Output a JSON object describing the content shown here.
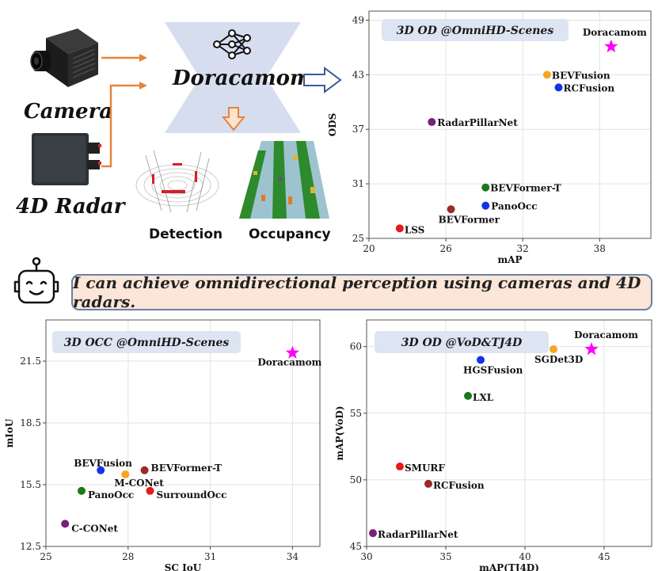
{
  "diagram": {
    "inputs": [
      {
        "label": "Camera",
        "icon": "camera-icon"
      },
      {
        "label": "4D Radar",
        "icon": "radar-icon"
      }
    ],
    "model_name": "Doracamom",
    "outputs": [
      {
        "label": "Detection"
      },
      {
        "label": "Occupancy"
      }
    ],
    "banner_text": "I can achieve omnidirectional perception using cameras and 4D radars.",
    "colors": {
      "arrow_orange": "#e8823a",
      "block_blue": "#d5ddef",
      "banner_bg": "#fbe6d7"
    }
  },
  "chart_data": [
    {
      "type": "scatter",
      "title": "3D OD @OmniHD-Scenes",
      "xlabel": "mAP",
      "ylabel": "ODS",
      "xlim": [
        20,
        42
      ],
      "ylim": [
        25,
        50
      ],
      "xticks": [
        20,
        26,
        32,
        38
      ],
      "yticks": [
        25,
        31,
        37,
        43,
        49
      ],
      "points": [
        {
          "name": "Doracamom",
          "x": 38.9,
          "y": 46.1,
          "color": "#ff00ff",
          "marker": "star"
        },
        {
          "name": "BEVFusion",
          "x": 33.9,
          "y": 43.0,
          "color": "#f5a623",
          "marker": "circle"
        },
        {
          "name": "RCFusion",
          "x": 34.8,
          "y": 41.6,
          "color": "#1533e6",
          "marker": "circle"
        },
        {
          "name": "RadarPillarNet",
          "x": 24.9,
          "y": 37.8,
          "color": "#7b1f7b",
          "marker": "circle"
        },
        {
          "name": "BEVFormer-T",
          "x": 29.1,
          "y": 30.6,
          "color": "#1a7a1a",
          "marker": "circle"
        },
        {
          "name": "PanoOcc",
          "x": 29.1,
          "y": 28.6,
          "color": "#1533e6",
          "marker": "circle"
        },
        {
          "name": "BEVFormer",
          "x": 26.4,
          "y": 28.2,
          "color": "#9b2a2a",
          "marker": "circle"
        },
        {
          "name": "LSS",
          "x": 22.4,
          "y": 26.1,
          "color": "#e61a1a",
          "marker": "circle"
        }
      ]
    },
    {
      "type": "scatter",
      "title": "3D OCC @OmniHD-Scenes",
      "xlabel": "SC IoU",
      "ylabel": "mIoU",
      "xlim": [
        25,
        35
      ],
      "ylim": [
        12.5,
        23.5
      ],
      "xticks": [
        25,
        28,
        31,
        34
      ],
      "yticks": [
        12.5,
        15.5,
        18.5,
        21.5
      ],
      "points": [
        {
          "name": "Doracamom",
          "x": 34.0,
          "y": 21.9,
          "color": "#ff00ff",
          "marker": "star"
        },
        {
          "name": "BEVFusion",
          "x": 27.0,
          "y": 16.2,
          "color": "#1533e6",
          "marker": "circle"
        },
        {
          "name": "M-CONet",
          "x": 27.9,
          "y": 16.0,
          "color": "#f5a623",
          "marker": "circle"
        },
        {
          "name": "BEVFormer-T",
          "x": 28.6,
          "y": 16.2,
          "color": "#9b2a2a",
          "marker": "circle"
        },
        {
          "name": "PanoOcc",
          "x": 26.3,
          "y": 15.2,
          "color": "#1a7a1a",
          "marker": "circle"
        },
        {
          "name": "SurroundOcc",
          "x": 28.8,
          "y": 15.2,
          "color": "#e61a1a",
          "marker": "circle"
        },
        {
          "name": "C-CONet",
          "x": 25.7,
          "y": 13.6,
          "color": "#7b1f7b",
          "marker": "circle"
        }
      ]
    },
    {
      "type": "scatter",
      "title": "3D OD @VoD&TJ4D",
      "xlabel": "mAP(TJ4D)",
      "ylabel": "mAP(VoD)",
      "xlim": [
        30,
        48
      ],
      "ylim": [
        45,
        62
      ],
      "xticks": [
        30,
        35,
        40,
        45
      ],
      "yticks": [
        45,
        50,
        55,
        60
      ],
      "points": [
        {
          "name": "Doracamom",
          "x": 44.2,
          "y": 59.8,
          "color": "#ff00ff",
          "marker": "star"
        },
        {
          "name": "SGDet3D",
          "x": 41.8,
          "y": 59.8,
          "color": "#f5a623",
          "marker": "circle"
        },
        {
          "name": "HGSFusion",
          "x": 37.2,
          "y": 59.0,
          "color": "#1533e6",
          "marker": "circle"
        },
        {
          "name": "LXL",
          "x": 36.4,
          "y": 56.3,
          "color": "#1a7a1a",
          "marker": "circle"
        },
        {
          "name": "SMURF",
          "x": 32.1,
          "y": 51.0,
          "color": "#e61a1a",
          "marker": "circle"
        },
        {
          "name": "RCFusion",
          "x": 33.9,
          "y": 49.7,
          "color": "#9b2a2a",
          "marker": "circle"
        },
        {
          "name": "RadarPillarNet",
          "x": 30.4,
          "y": 46.0,
          "color": "#7b1f7b",
          "marker": "circle"
        }
      ]
    }
  ]
}
